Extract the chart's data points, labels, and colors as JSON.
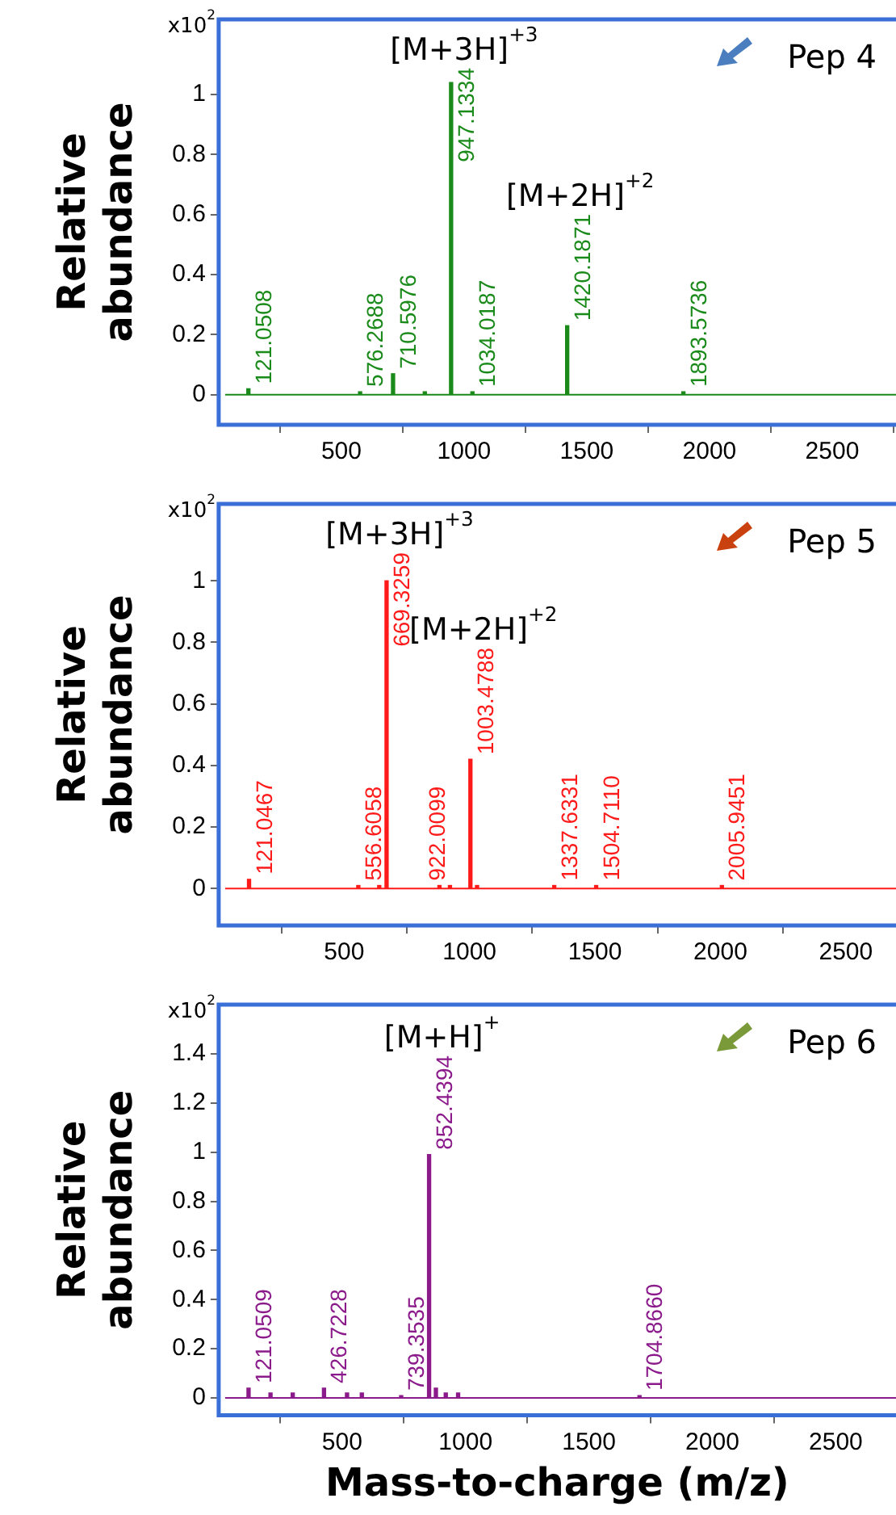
{
  "chart_data": [
    {
      "type": "bar",
      "ylabel": "Relative abundance",
      "x": [
        121.0508,
        576.2688,
        710.5976,
        840,
        947.1334,
        1034.0187,
        1420.1871,
        1893.5736
      ],
      "values": [
        0.02,
        0.01,
        0.07,
        0.01,
        1.04,
        0.01,
        0.23,
        0.01
      ],
      "color": "#1a8a1a",
      "xlim": [
        0,
        2760
      ],
      "xticks": [
        500,
        1000,
        1500,
        2000,
        2500
      ],
      "ylim": [
        -0.1,
        1.25
      ],
      "yticks": [
        0,
        0.2,
        0.4,
        0.6,
        0.8,
        1
      ],
      "ref_lines": [
        {
          "axis": "y",
          "value": 0,
          "color": "#1a8a1a"
        }
      ],
      "annotations": [
        "x10$^{2}$",
        "Pep 4",
        "[M+3H]$^{+3}$",
        "[M+2H]$^{+2}$",
        {
          "text": "121.0508",
          "x": 121.0508,
          "y": 0.02
        },
        {
          "text": "576.2688",
          "x": 576.2688,
          "y": 0.01
        },
        {
          "text": "710.5976",
          "x": 710.5976,
          "y": 0.07
        },
        {
          "text": "947.1334",
          "x": 947.1334,
          "y": 1.04
        },
        {
          "text": "1034.0187",
          "x": 1034.0187,
          "y": 0.01
        },
        {
          "text": "1420.1871",
          "x": 1420.1871,
          "y": 0.23
        },
        {
          "text": "1893.5736",
          "x": 1893.5736,
          "y": 0.01
        }
      ]
    },
    {
      "type": "bar",
      "ylabel": "Relative abundance",
      "x": [
        121.0467,
        556.6058,
        640,
        669.3259,
        880,
        922.0099,
        1003.4788,
        1030,
        1337.6331,
        1504.711,
        2005.9451
      ],
      "values": [
        0.03,
        0.01,
        0.01,
        1.0,
        0.01,
        0.01,
        0.42,
        0.01,
        0.01,
        0.01,
        0.01
      ],
      "color": "#ff1a1a",
      "xlim": [
        0,
        2700
      ],
      "xticks": [
        500,
        1000,
        1500,
        2000,
        2500
      ],
      "ylim": [
        -0.12,
        1.25
      ],
      "yticks": [
        0,
        0.2,
        0.4,
        0.6,
        0.8,
        1
      ],
      "ref_lines": [
        {
          "axis": "y",
          "value": 0,
          "color": "#ff1a1a"
        }
      ],
      "annotations": [
        "x10$^{2}$",
        "Pep 5",
        "[M+3H]$^{+3}$",
        "[M+2H]$^{+2}$",
        {
          "text": "121.0467",
          "x": 121.0467,
          "y": 0.03
        },
        {
          "text": "556.6058",
          "x": 556.6058,
          "y": 0.01
        },
        {
          "text": "669.3259",
          "x": 669.3259,
          "y": 1.0
        },
        {
          "text": "922.0099",
          "x": 922.0099,
          "y": 0.01
        },
        {
          "text": "1003.4788",
          "x": 1003.4788,
          "y": 0.42
        },
        {
          "text": "1337.6331",
          "x": 1337.6331,
          "y": 0.01
        },
        {
          "text": "1504.7110",
          "x": 1504.711,
          "y": 0.01
        },
        {
          "text": "2005.9451",
          "x": 2005.9451,
          "y": 0.01
        }
      ]
    },
    {
      "type": "bar",
      "ylabel": "Relative abundance",
      "xlabel": "Mass-to-charge (m/z)",
      "x": [
        121.0509,
        210,
        300,
        426.7228,
        520,
        580,
        739.3535,
        852.4394,
        880,
        920,
        970,
        1704.866
      ],
      "values": [
        0.04,
        0.02,
        0.02,
        0.04,
        0.02,
        0.02,
        0.01,
        0.99,
        0.04,
        0.02,
        0.02,
        0.01
      ],
      "color": "#8b1a8b",
      "xlim": [
        0,
        2744
      ],
      "xticks": [
        500,
        1000,
        1500,
        2000,
        2500
      ],
      "ylim": [
        -0.07,
        1.6
      ],
      "yticks": [
        0,
        0.2,
        0.4,
        0.6,
        0.8,
        1,
        1.2,
        1.4
      ],
      "ref_lines": [
        {
          "axis": "y",
          "value": 0,
          "color": "#8b1a8b"
        }
      ],
      "annotations": [
        "x10$^{2}$",
        "Pep 6",
        "[M+H]$^{+}$",
        {
          "text": "121.0509",
          "x": 121.0509,
          "y": 0.04
        },
        {
          "text": "426.7228",
          "x": 426.7228,
          "y": 0.04
        },
        {
          "text": "739.3535",
          "x": 739.3535,
          "y": 0.01
        },
        {
          "text": "852.4394",
          "x": 852.4394,
          "y": 0.99
        },
        {
          "text": "1704.8660",
          "x": 1704.866,
          "y": 0.01
        }
      ]
    }
  ]
}
